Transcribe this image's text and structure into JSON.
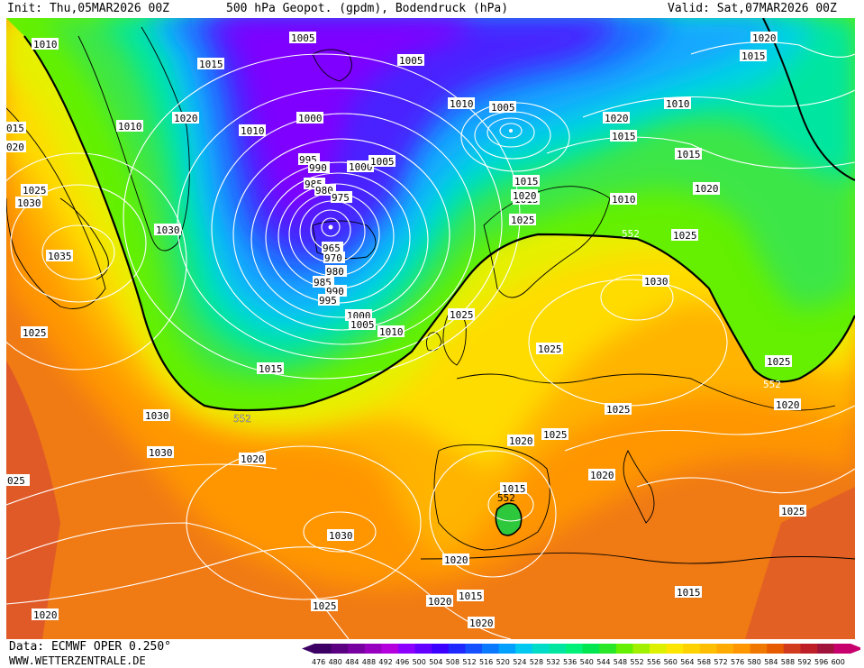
{
  "header": {
    "init": "Init: Thu,05MAR2026 00Z",
    "title": "500 hPa Geopot. (gpdm), Bodendruck (hPa)",
    "valid": "Valid: Sat,07MAR2026 00Z"
  },
  "footer": {
    "data_source": "Data: ECMWF OPER 0.250°",
    "website": "WWW.WETTERZENTRALE.DE"
  },
  "legend": {
    "values": [
      "476",
      "480",
      "484",
      "488",
      "492",
      "496",
      "500",
      "504",
      "508",
      "512",
      "516",
      "520",
      "524",
      "528",
      "532",
      "536",
      "540",
      "544",
      "548",
      "552",
      "556",
      "560",
      "564",
      "568",
      "572",
      "576",
      "580",
      "584",
      "588",
      "592",
      "596",
      "600"
    ],
    "colors": [
      "#3c0064",
      "#5a0080",
      "#7800a0",
      "#9600be",
      "#b400dc",
      "#8c00ff",
      "#6400ff",
      "#3c00ff",
      "#1e28ff",
      "#1450ff",
      "#0a78ff",
      "#00a0ff",
      "#00c8f0",
      "#00dcc8",
      "#00e6a0",
      "#00f078",
      "#00e650",
      "#28e628",
      "#64f000",
      "#a0f000",
      "#dcf000",
      "#ffe600",
      "#ffd200",
      "#ffbe00",
      "#ffaa00",
      "#ff9600",
      "#f07800",
      "#e65a00",
      "#d23c1e",
      "#be1e28",
      "#a0143c",
      "#c8006e"
    ]
  },
  "map": {
    "colors": {
      "z476_500": "#7f00ff",
      "z504": "#4a20ff",
      "z512": "#1e6eff",
      "z524": "#14a8ff",
      "z532": "#00d2e6",
      "z540": "#00e6a0",
      "z548": "#3ce646",
      "z552": "#64f000",
      "z556": "#e6f000",
      "z564": "#ffdc00",
      "z572": "#ffb400",
      "z580": "#ff9600",
      "z584": "#f07a14",
      "z588": "#e05a28",
      "green_blob": "#2ec83c"
    },
    "contour_552_labels": [
      "552",
      "552",
      "552",
      "552",
      "552"
    ],
    "pressure_labels": [
      "1010",
      "1015",
      "1005",
      "1005",
      "1020",
      "1020",
      "1015",
      "015",
      "1010",
      "020",
      "1020",
      "1010",
      "1010",
      "1005",
      "1000",
      "1020",
      "1015",
      "1010",
      "1015",
      "1015",
      "995",
      "990",
      "1000",
      "1005",
      "985",
      "980",
      "975",
      "1025",
      "1030",
      "1030",
      "1015",
      "1020",
      "1010",
      "1020",
      "1025",
      "965",
      "970",
      "980",
      "985",
      "990",
      "995",
      "1035",
      "1030",
      "1025",
      "1000",
      "1005",
      "1010",
      "1025",
      "1025",
      "1015",
      "1025",
      "1030",
      "1025",
      "1025",
      "1020",
      "1030",
      "1025",
      "1020",
      "1020",
      "1020",
      "1025",
      "1020",
      "025",
      "1015",
      "1030",
      "1020",
      "1020",
      "1015",
      "1025",
      "1020",
      "1015",
      "1020"
    ]
  }
}
